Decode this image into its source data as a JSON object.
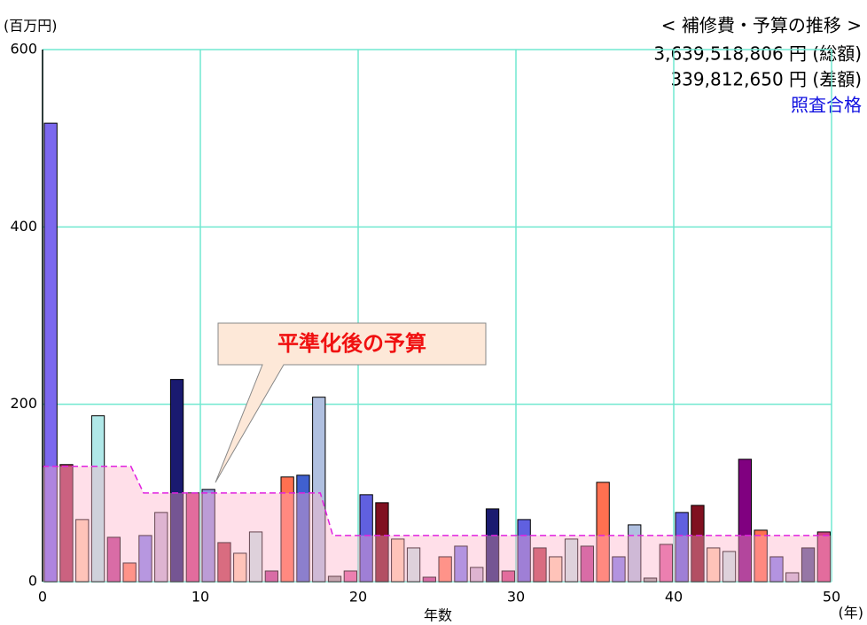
{
  "chart_data": {
    "type": "bar",
    "unit_label": "(百万円)",
    "title": "< 補修費・予算の推移 >",
    "total_line": "3,639,518,806 円 (総額)",
    "diff_line": "339,812,650 円 (差額)",
    "status": "照査合格",
    "annotation": "平準化後の予算",
    "xlabel": "年数",
    "xunit": "(年)",
    "xlim": [
      0,
      50
    ],
    "ylim": [
      0,
      600
    ],
    "xticks": [
      0,
      10,
      20,
      30,
      40,
      50
    ],
    "yticks": [
      0,
      200,
      400,
      600
    ],
    "grid": true,
    "x": [
      0,
      1,
      2,
      3,
      4,
      5,
      6,
      7,
      8,
      9,
      10,
      11,
      12,
      13,
      14,
      15,
      16,
      17,
      18,
      19,
      20,
      21,
      22,
      23,
      24,
      25,
      26,
      27,
      28,
      29,
      30,
      31,
      32,
      33,
      34,
      35,
      36,
      37,
      38,
      39,
      40,
      41,
      42,
      43,
      44,
      45,
      46,
      47,
      48,
      49
    ],
    "values": [
      517,
      132,
      70,
      187,
      50,
      21,
      52,
      78,
      228,
      100,
      104,
      44,
      32,
      56,
      12,
      118,
      120,
      208,
      6,
      12,
      98,
      89,
      48,
      38,
      5,
      28,
      40,
      16,
      82,
      12,
      70,
      38,
      28,
      48,
      40,
      112,
      28,
      64,
      4,
      42,
      78,
      86,
      38,
      34,
      138,
      58,
      28,
      10,
      38,
      56
    ],
    "colors": [
      "#7b68ee",
      "#a83050",
      "#ffd0b0",
      "#b0e8e8",
      "#c04090",
      "#ff8060",
      "#8888f0",
      "#c8b8d8",
      "#1a1a70",
      "#d04080",
      "#9090e0",
      "#c04050",
      "#ffd0b0",
      "#c8e8e8",
      "#c04090",
      "#ff7050",
      "#4060d0",
      "#b0c0e0",
      "#a0a0a0",
      "#e060a0",
      "#6060e0",
      "#801020",
      "#ffd0b0",
      "#c8e8e8",
      "#c04090",
      "#ff8060",
      "#8080f0",
      "#c8b8d8",
      "#1a1a70",
      "#d04080",
      "#6060e0",
      "#c04050",
      "#ffd0b0",
      "#c8e8e8",
      "#c04090",
      "#ff7050",
      "#8080f0",
      "#b0c0e0",
      "#a0a0a0",
      "#e060a0",
      "#6060e0",
      "#801020",
      "#ffd0b0",
      "#c8e8e8",
      "#800080",
      "#ff7050",
      "#8080f0",
      "#c8b8d8",
      "#505090",
      "#d04080"
    ],
    "budget": {
      "x": [
        0,
        5.6,
        6.4,
        17.6,
        18.4,
        50
      ],
      "values": [
        130,
        130,
        100,
        100,
        52,
        52
      ],
      "color": "#e020e0"
    }
  }
}
